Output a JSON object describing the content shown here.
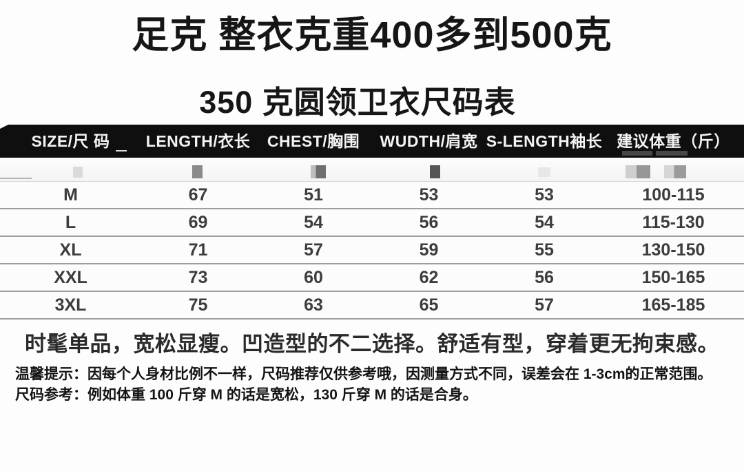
{
  "page": {
    "title": "足克 整衣克重400多到500克",
    "subtitle": "350 克圆领卫衣尺码表",
    "promo": "时髦单品，宽松显瘦。凹造型的不二选择。舒适有型，穿着更无拘束感。",
    "tip_warm": "温馨提示：因每个人身材比例不一样，尺码推荐仅供参考哦，因测量方式不同，误差会在 1-3cm的正常范围。",
    "tip_reference": "尺码参考：例如体重 100 斤穿 M 的话是宽松，130 斤穿 M 的话是合身。"
  },
  "chart_data": {
    "type": "table",
    "title": "350 克圆领卫衣尺码表",
    "columns": [
      "SIZE/尺 码",
      "LENGTH/衣长",
      "CHEST/胸围",
      "WUDTH/肩宽",
      "S-LENGTH袖长",
      "建议体重（斤）"
    ],
    "rows": [
      [
        "M",
        "67",
        "51",
        "53",
        "53",
        "100-115"
      ],
      [
        "L",
        "69",
        "54",
        "56",
        "54",
        "115-130"
      ],
      [
        "XL",
        "71",
        "57",
        "59",
        "55",
        "130-150"
      ],
      [
        "XXL",
        "73",
        "60",
        "62",
        "56",
        "150-165"
      ],
      [
        "3XL",
        "75",
        "63",
        "65",
        "57",
        "165-185"
      ]
    ],
    "units": "cm",
    "first_row_redacted": true
  },
  "colors": {
    "page_bg": "#fdfdfd",
    "title_text": "#161616",
    "header_bg": "#0f0f0f",
    "header_text": "#f4f4f4",
    "row_text": "#3c3c3c",
    "separator": "#9e9e9e",
    "promo_text": "#2a2a2a",
    "note_text": "#141414"
  }
}
